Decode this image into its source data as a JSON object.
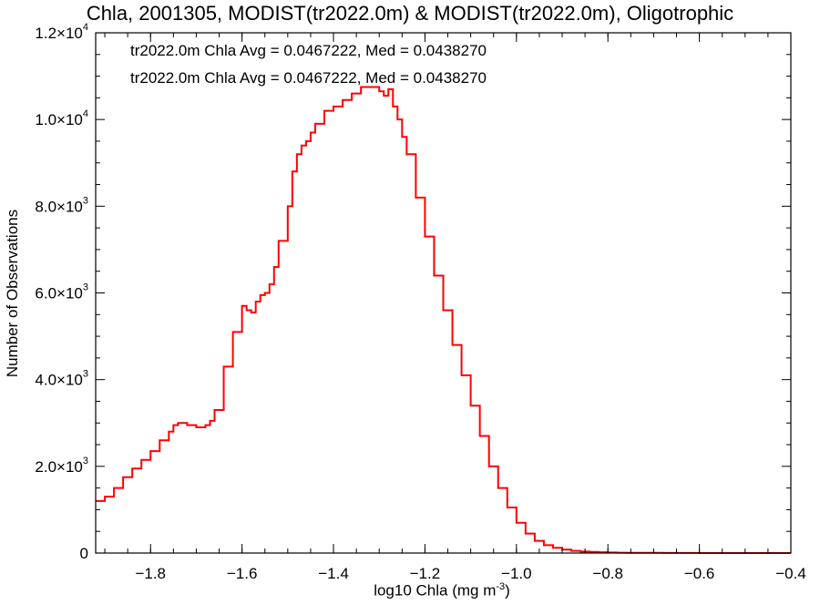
{
  "chart_data": {
    "type": "line",
    "style": "step-histogram",
    "title": "Chla, 2001305, MODIST(tr2022.0m) & MODIST(tr2022.0m), Oligotrophic",
    "xlabel": "log10 Chla (mg m",
    "xlabel_sup": "-3",
    "xlabel_suffix": ")",
    "ylabel": "Number of Observations",
    "xlim": [
      -1.92,
      -0.4
    ],
    "ylim": [
      0,
      12000
    ],
    "xticks": [
      {
        "value": -1.8,
        "label": "−1.8"
      },
      {
        "value": -1.6,
        "label": "−1.6"
      },
      {
        "value": -1.4,
        "label": "−1.4"
      },
      {
        "value": -1.2,
        "label": "−1.2"
      },
      {
        "value": -1.0,
        "label": "−1.0"
      },
      {
        "value": -0.8,
        "label": "−0.8"
      },
      {
        "value": -0.6,
        "label": "−0.6"
      },
      {
        "value": -0.4,
        "label": "−0.4"
      }
    ],
    "yticks": [
      {
        "value": 0,
        "label": "0",
        "sup": ""
      },
      {
        "value": 2000,
        "label": "2.0×10",
        "sup": "3"
      },
      {
        "value": 4000,
        "label": "4.0×10",
        "sup": "3"
      },
      {
        "value": 6000,
        "label": "6.0×10",
        "sup": "3"
      },
      {
        "value": 8000,
        "label": "8.0×10",
        "sup": "3"
      },
      {
        "value": 10000,
        "label": "1.0×10",
        "sup": "4"
      },
      {
        "value": 12000,
        "label": "1.2×10",
        "sup": "4"
      }
    ],
    "annotations": [
      {
        "text": "tr2022.0m Chla Avg = 0.0467222, Med = 0.0438270",
        "color": "#000000"
      },
      {
        "text": "tr2022.0m Chla Avg = 0.0467222, Med = 0.0438270",
        "color": "#ff0000"
      }
    ],
    "series": [
      {
        "color": "#ff0000",
        "x": [
          -1.92,
          -1.9,
          -1.88,
          -1.86,
          -1.84,
          -1.82,
          -1.8,
          -1.78,
          -1.76,
          -1.75,
          -1.74,
          -1.72,
          -1.7,
          -1.68,
          -1.67,
          -1.66,
          -1.64,
          -1.62,
          -1.6,
          -1.59,
          -1.58,
          -1.57,
          -1.56,
          -1.55,
          -1.54,
          -1.53,
          -1.52,
          -1.5,
          -1.49,
          -1.48,
          -1.47,
          -1.46,
          -1.45,
          -1.44,
          -1.42,
          -1.4,
          -1.38,
          -1.36,
          -1.34,
          -1.32,
          -1.3,
          -1.29,
          -1.28,
          -1.27,
          -1.26,
          -1.25,
          -1.24,
          -1.22,
          -1.2,
          -1.18,
          -1.16,
          -1.14,
          -1.12,
          -1.1,
          -1.08,
          -1.06,
          -1.04,
          -1.02,
          -1.0,
          -0.98,
          -0.96,
          -0.94,
          -0.92,
          -0.9,
          -0.88,
          -0.86,
          -0.84,
          -0.82,
          -0.8,
          -0.78,
          -0.76,
          -0.72,
          -0.68,
          -0.64,
          -0.6,
          -0.5,
          -0.4
        ],
        "y": [
          1200,
          1300,
          1500,
          1750,
          1950,
          2150,
          2350,
          2600,
          2800,
          2950,
          3000,
          2950,
          2900,
          2950,
          3050,
          3300,
          4300,
          5100,
          5700,
          5600,
          5550,
          5800,
          5950,
          6000,
          6200,
          6600,
          7200,
          8000,
          8800,
          9200,
          9400,
          9500,
          9700,
          9900,
          10200,
          10300,
          10450,
          10600,
          10750,
          10750,
          10650,
          10550,
          10700,
          10300,
          10000,
          9600,
          9200,
          8200,
          7300,
          6400,
          5600,
          4800,
          4100,
          3400,
          2700,
          2000,
          1500,
          1050,
          700,
          450,
          280,
          180,
          120,
          80,
          50,
          35,
          25,
          18,
          12,
          8,
          6,
          4,
          3,
          2,
          1,
          0,
          0
        ]
      }
    ]
  }
}
